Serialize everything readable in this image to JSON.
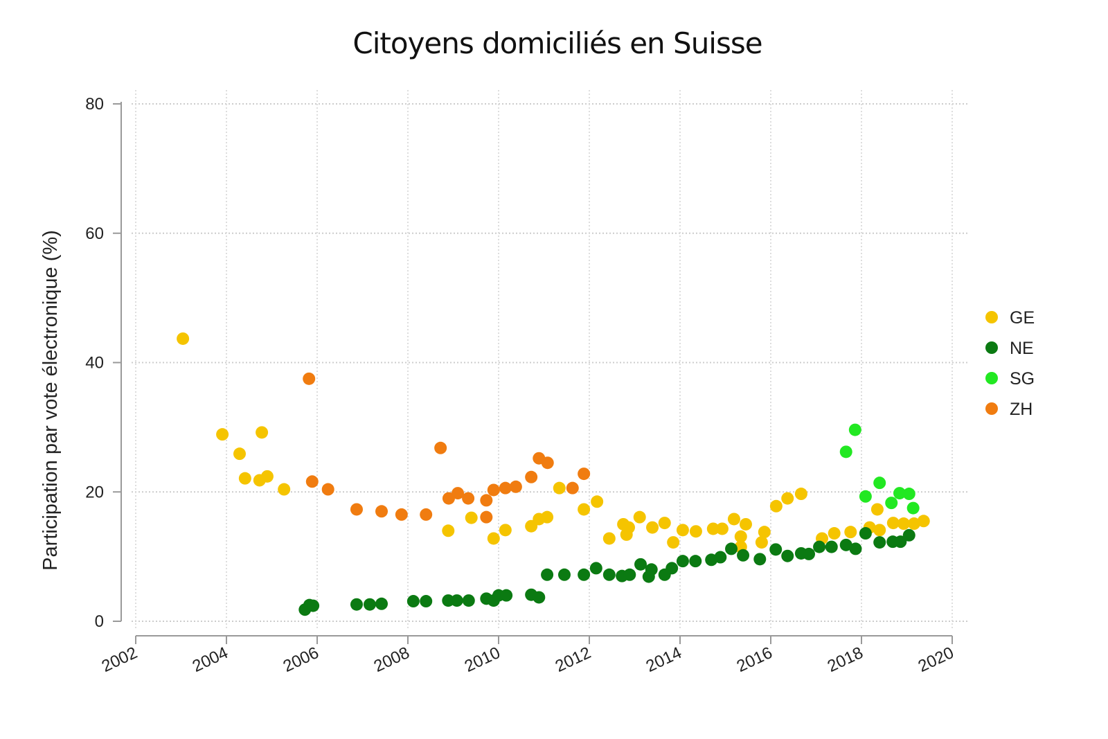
{
  "chart_data": {
    "type": "scatter",
    "title": "Citoyens domiciliés en Suisse",
    "xlabel": "",
    "ylabel": "Participation par vote électronique (%)",
    "xlim": [
      2002,
      2020
    ],
    "ylim": [
      0,
      80
    ],
    "xticks": [
      "2002",
      "2004",
      "2006",
      "2008",
      "2010",
      "2012",
      "2014",
      "2016",
      "2018",
      "2020"
    ],
    "yticks": [
      "0",
      "20",
      "40",
      "60",
      "80"
    ],
    "grid": true,
    "legend_position": "right",
    "series": [
      {
        "name": "GE",
        "color": "#f5c400",
        "points": [
          [
            2003.04,
            43.7
          ],
          [
            2003.91,
            28.9
          ],
          [
            2004.29,
            25.9
          ],
          [
            2004.41,
            22.1
          ],
          [
            2004.73,
            21.8
          ],
          [
            2004.78,
            29.2
          ],
          [
            2004.9,
            22.4
          ],
          [
            2005.27,
            20.4
          ],
          [
            2008.89,
            14.0
          ],
          [
            2009.4,
            16.0
          ],
          [
            2009.89,
            12.8
          ],
          [
            2010.15,
            14.1
          ],
          [
            2010.72,
            14.7
          ],
          [
            2010.89,
            15.8
          ],
          [
            2011.07,
            16.1
          ],
          [
            2011.34,
            20.6
          ],
          [
            2011.88,
            17.3
          ],
          [
            2012.17,
            18.5
          ],
          [
            2012.44,
            12.8
          ],
          [
            2012.75,
            15.0
          ],
          [
            2012.82,
            13.4
          ],
          [
            2012.87,
            14.5
          ],
          [
            2013.11,
            16.1
          ],
          [
            2013.39,
            14.5
          ],
          [
            2013.66,
            15.2
          ],
          [
            2013.85,
            12.2
          ],
          [
            2014.06,
            14.1
          ],
          [
            2014.35,
            13.9
          ],
          [
            2014.73,
            14.3
          ],
          [
            2014.93,
            14.3
          ],
          [
            2015.19,
            15.8
          ],
          [
            2015.34,
            13.1
          ],
          [
            2015.34,
            11.5
          ],
          [
            2015.45,
            15.0
          ],
          [
            2015.8,
            12.2
          ],
          [
            2015.86,
            13.8
          ],
          [
            2016.12,
            17.8
          ],
          [
            2016.37,
            19.0
          ],
          [
            2016.67,
            19.7
          ],
          [
            2017.13,
            12.8
          ],
          [
            2017.4,
            13.6
          ],
          [
            2017.76,
            13.8
          ],
          [
            2018.18,
            14.5
          ],
          [
            2018.35,
            17.3
          ],
          [
            2018.4,
            14.1
          ],
          [
            2018.7,
            15.2
          ],
          [
            2018.93,
            15.1
          ],
          [
            2019.16,
            15.1
          ],
          [
            2019.37,
            15.5
          ]
        ]
      },
      {
        "name": "NE",
        "color": "#0b7a12",
        "points": [
          [
            2005.73,
            1.8
          ],
          [
            2005.83,
            2.5
          ],
          [
            2005.91,
            2.4
          ],
          [
            2006.87,
            2.6
          ],
          [
            2007.16,
            2.6
          ],
          [
            2007.42,
            2.7
          ],
          [
            2008.12,
            3.1
          ],
          [
            2008.4,
            3.1
          ],
          [
            2008.89,
            3.2
          ],
          [
            2009.08,
            3.2
          ],
          [
            2009.34,
            3.2
          ],
          [
            2009.73,
            3.5
          ],
          [
            2009.89,
            3.2
          ],
          [
            2010.0,
            4.0
          ],
          [
            2010.17,
            4.0
          ],
          [
            2010.72,
            4.1
          ],
          [
            2010.89,
            3.7
          ],
          [
            2011.07,
            7.2
          ],
          [
            2011.45,
            7.2
          ],
          [
            2011.88,
            7.2
          ],
          [
            2012.15,
            8.2
          ],
          [
            2012.44,
            7.2
          ],
          [
            2012.72,
            7.0
          ],
          [
            2012.89,
            7.2
          ],
          [
            2013.13,
            8.8
          ],
          [
            2013.31,
            6.9
          ],
          [
            2013.37,
            8.0
          ],
          [
            2013.66,
            7.2
          ],
          [
            2013.82,
            8.2
          ],
          [
            2014.06,
            9.3
          ],
          [
            2014.34,
            9.3
          ],
          [
            2014.69,
            9.5
          ],
          [
            2014.89,
            9.9
          ],
          [
            2015.13,
            11.2
          ],
          [
            2015.39,
            10.2
          ],
          [
            2015.76,
            9.6
          ],
          [
            2016.11,
            11.1
          ],
          [
            2016.37,
            10.1
          ],
          [
            2016.67,
            10.5
          ],
          [
            2016.84,
            10.4
          ],
          [
            2017.07,
            11.5
          ],
          [
            2017.34,
            11.5
          ],
          [
            2017.66,
            11.8
          ],
          [
            2017.87,
            11.2
          ],
          [
            2018.09,
            13.6
          ],
          [
            2018.4,
            12.2
          ],
          [
            2018.69,
            12.3
          ],
          [
            2018.86,
            12.3
          ],
          [
            2019.05,
            13.3
          ]
        ]
      },
      {
        "name": "SG",
        "color": "#22e822",
        "points": [
          [
            2017.66,
            26.2
          ],
          [
            2017.86,
            29.6
          ],
          [
            2018.09,
            19.3
          ],
          [
            2018.4,
            21.4
          ],
          [
            2018.66,
            18.3
          ],
          [
            2018.84,
            19.8
          ],
          [
            2019.05,
            19.7
          ],
          [
            2019.14,
            17.5
          ]
        ]
      },
      {
        "name": "ZH",
        "color": "#f07c10",
        "points": [
          [
            2005.82,
            37.5
          ],
          [
            2005.89,
            21.6
          ],
          [
            2006.24,
            20.4
          ],
          [
            2006.87,
            17.3
          ],
          [
            2007.42,
            17.0
          ],
          [
            2007.86,
            16.5
          ],
          [
            2008.4,
            16.5
          ],
          [
            2008.72,
            26.8
          ],
          [
            2008.9,
            19.0
          ],
          [
            2009.1,
            19.8
          ],
          [
            2009.33,
            19.0
          ],
          [
            2009.73,
            16.1
          ],
          [
            2009.73,
            18.7
          ],
          [
            2009.89,
            20.3
          ],
          [
            2010.15,
            20.6
          ],
          [
            2010.38,
            20.8
          ],
          [
            2010.72,
            22.3
          ],
          [
            2010.89,
            25.2
          ],
          [
            2011.08,
            24.5
          ],
          [
            2011.63,
            20.6
          ],
          [
            2011.88,
            22.8
          ]
        ]
      }
    ]
  }
}
